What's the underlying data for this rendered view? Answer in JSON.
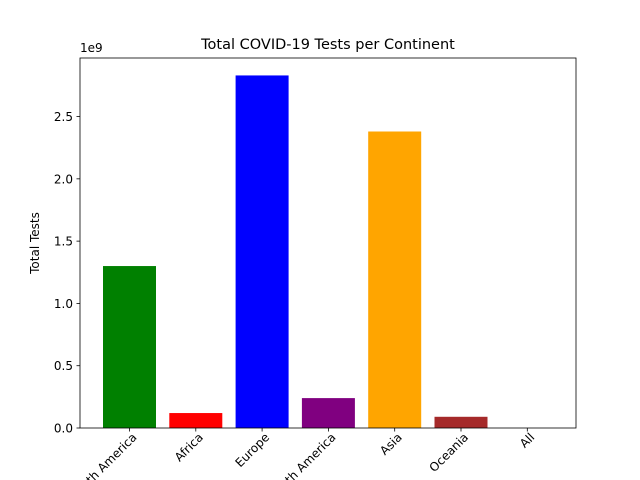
{
  "chart_data": {
    "type": "bar",
    "title": "Total COVID-19 Tests per Continent",
    "xlabel": "",
    "ylabel": "Total Tests",
    "offset_label": "1e9",
    "categories": [
      "North America",
      "Africa",
      "Europe",
      "South America",
      "Asia",
      "Oceania",
      "All"
    ],
    "values": [
      1.3,
      0.12,
      2.83,
      0.24,
      2.38,
      0.09,
      0.0
    ],
    "colors": [
      "#008000",
      "#ff0000",
      "#0000ff",
      "#800080",
      "#ffa500",
      "#a52a2a",
      "#ffc0cb"
    ],
    "yticks": [
      0.0,
      0.5,
      1.0,
      1.5,
      2.0,
      2.5
    ],
    "ytick_labels": [
      "0.0",
      "0.5",
      "1.0",
      "1.5",
      "2.0",
      "2.5"
    ],
    "ylim": [
      0.0,
      2.97
    ],
    "grid": false,
    "legend": false
  }
}
